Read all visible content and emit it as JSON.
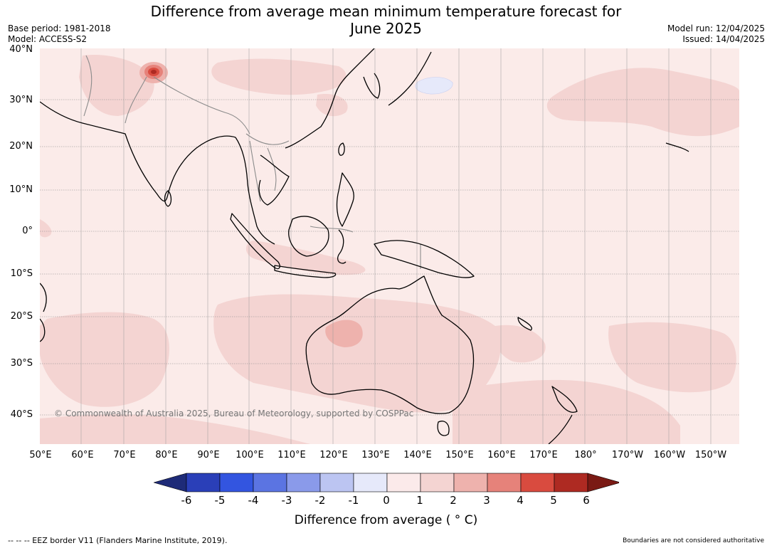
{
  "header": {
    "title_line1": "Difference from average mean minimum temperature forecast for",
    "title_line2": "June 2025",
    "base_period": "Base period: 1981-2018",
    "model": "Model: ACCESS-S2",
    "model_run": "Model run: 12/04/2025",
    "issued": "Issued: 14/04/2025"
  },
  "map": {
    "lat_labels": [
      "40°N",
      "30°N",
      "20°N",
      "10°N",
      "0°",
      "10°S",
      "20°S",
      "30°S",
      "40°S"
    ],
    "lon_labels": [
      "50°E",
      "60°E",
      "70°E",
      "80°E",
      "90°E",
      "100°E",
      "110°E",
      "120°E",
      "130°E",
      "140°E",
      "150°E",
      "160°E",
      "170°E",
      "180°",
      "170°W",
      "160°W",
      "150°W"
    ],
    "copyright": "© Commonwealth of Australia 2025, Bureau of Meteorology, supported by COSPPac",
    "colors": {
      "ocean_base": "#fbebe9",
      "anomaly_1_2": "#f4d4d2",
      "anomaly_2_3": "#eeb2ad",
      "anomaly_3_4": "#e6827a",
      "coast": "#000000",
      "border": "#8c8c8c"
    }
  },
  "colorbar": {
    "title": "Difference from average ( ° C)",
    "ticks": [
      "-6",
      "-5",
      "-4",
      "-3",
      "-2",
      "-1",
      "0",
      "1",
      "2",
      "3",
      "4",
      "5",
      "6"
    ],
    "bins": [
      {
        "from": -7,
        "to": -6,
        "color": "#1e2b78"
      },
      {
        "from": -6,
        "to": -5,
        "color": "#2a3fb8"
      },
      {
        "from": -5,
        "to": -4,
        "color": "#3355e0"
      },
      {
        "from": -4,
        "to": -3,
        "color": "#5b74e2"
      },
      {
        "from": -3,
        "to": -2,
        "color": "#8a9aea"
      },
      {
        "from": -2,
        "to": -1,
        "color": "#bcc5f2"
      },
      {
        "from": -1,
        "to": 0,
        "color": "#e6e9fa"
      },
      {
        "from": 0,
        "to": 1,
        "color": "#fbeaea"
      },
      {
        "from": 1,
        "to": 2,
        "color": "#f4d4d2"
      },
      {
        "from": 2,
        "to": 3,
        "color": "#eeb2ad"
      },
      {
        "from": 3,
        "to": 4,
        "color": "#e6827a"
      },
      {
        "from": 4,
        "to": 5,
        "color": "#d94b3f"
      },
      {
        "from": 5,
        "to": 6,
        "color": "#ae2a22"
      },
      {
        "from": 6,
        "to": 7,
        "color": "#7a1a14"
      }
    ]
  },
  "footer": {
    "eez_note": "-- -- -- EEZ border V11 (Flanders Marine Institute, 2019).",
    "boundaries_note": "Boundaries are not considered authoritative"
  }
}
